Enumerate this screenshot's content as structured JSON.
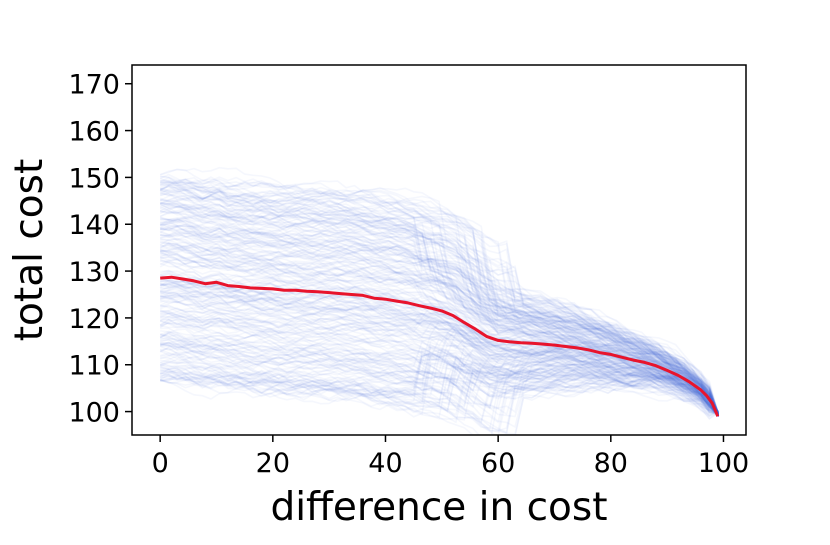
{
  "chart_data": {
    "type": "line",
    "title": "",
    "xlabel": "difference in cost",
    "ylabel": "total cost",
    "xlim": [
      -5,
      104
    ],
    "ylim": [
      95,
      174
    ],
    "xticks": [
      0,
      20,
      40,
      60,
      80,
      100
    ],
    "yticks": [
      100,
      110,
      120,
      130,
      140,
      150,
      160,
      170
    ],
    "grid": false,
    "legend": "none",
    "colors": {
      "mean_line": "#e8142c",
      "traces": "#4169e1"
    },
    "series": [
      {
        "role": "mean",
        "x": [
          0,
          2,
          4,
          6,
          8,
          10,
          12,
          14,
          16,
          18,
          20,
          22,
          24,
          26,
          28,
          30,
          32,
          34,
          36,
          38,
          40,
          42,
          44,
          46,
          48,
          50,
          52,
          54,
          55,
          56,
          58,
          60,
          62,
          64,
          66,
          68,
          70,
          72,
          74,
          76,
          78,
          80,
          82,
          84,
          86,
          88,
          90,
          92,
          94,
          96,
          97,
          98,
          99
        ],
        "values": [
          128.5,
          128.7,
          128.3,
          127.9,
          127.3,
          127.6,
          126.9,
          126.7,
          126.4,
          126.3,
          126.2,
          125.9,
          125.9,
          125.7,
          125.6,
          125.4,
          125.2,
          125.0,
          124.8,
          124.2,
          124.0,
          123.6,
          123.2,
          122.6,
          122.1,
          121.5,
          120.5,
          119.0,
          118.3,
          117.6,
          116.0,
          115.2,
          114.9,
          114.7,
          114.6,
          114.4,
          114.2,
          113.9,
          113.6,
          113.2,
          112.6,
          112.2,
          111.6,
          111.0,
          110.5,
          109.8,
          108.8,
          107.7,
          106.3,
          104.6,
          103.4,
          101.8,
          99.0
        ]
      }
    ]
  }
}
